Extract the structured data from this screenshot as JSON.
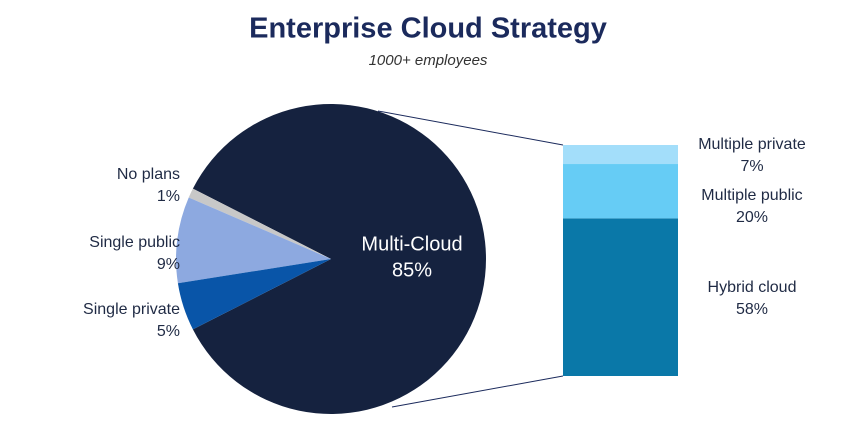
{
  "chart_data": {
    "type": "pie",
    "title": "Enterprise Cloud Strategy",
    "subtitle": "1000+ employees",
    "categories": [
      "Multi-Cloud",
      "No plans",
      "Single public",
      "Single private"
    ],
    "values": [
      85,
      1,
      9,
      5
    ],
    "value_labels": [
      "85%",
      "1%",
      "9%",
      "5%"
    ],
    "colors": [
      "#15223f",
      "#c8c8c8",
      "#8da9e0",
      "#0955a8"
    ],
    "breakdown": {
      "type": "bar",
      "categories": [
        "Hybrid cloud",
        "Multiple public",
        "Multiple private"
      ],
      "values": [
        58,
        20,
        7
      ],
      "value_labels": [
        "58%",
        "20%",
        "7%"
      ],
      "colors": [
        "#0a78a8",
        "#66ccf5",
        "#a3defa"
      ]
    }
  }
}
